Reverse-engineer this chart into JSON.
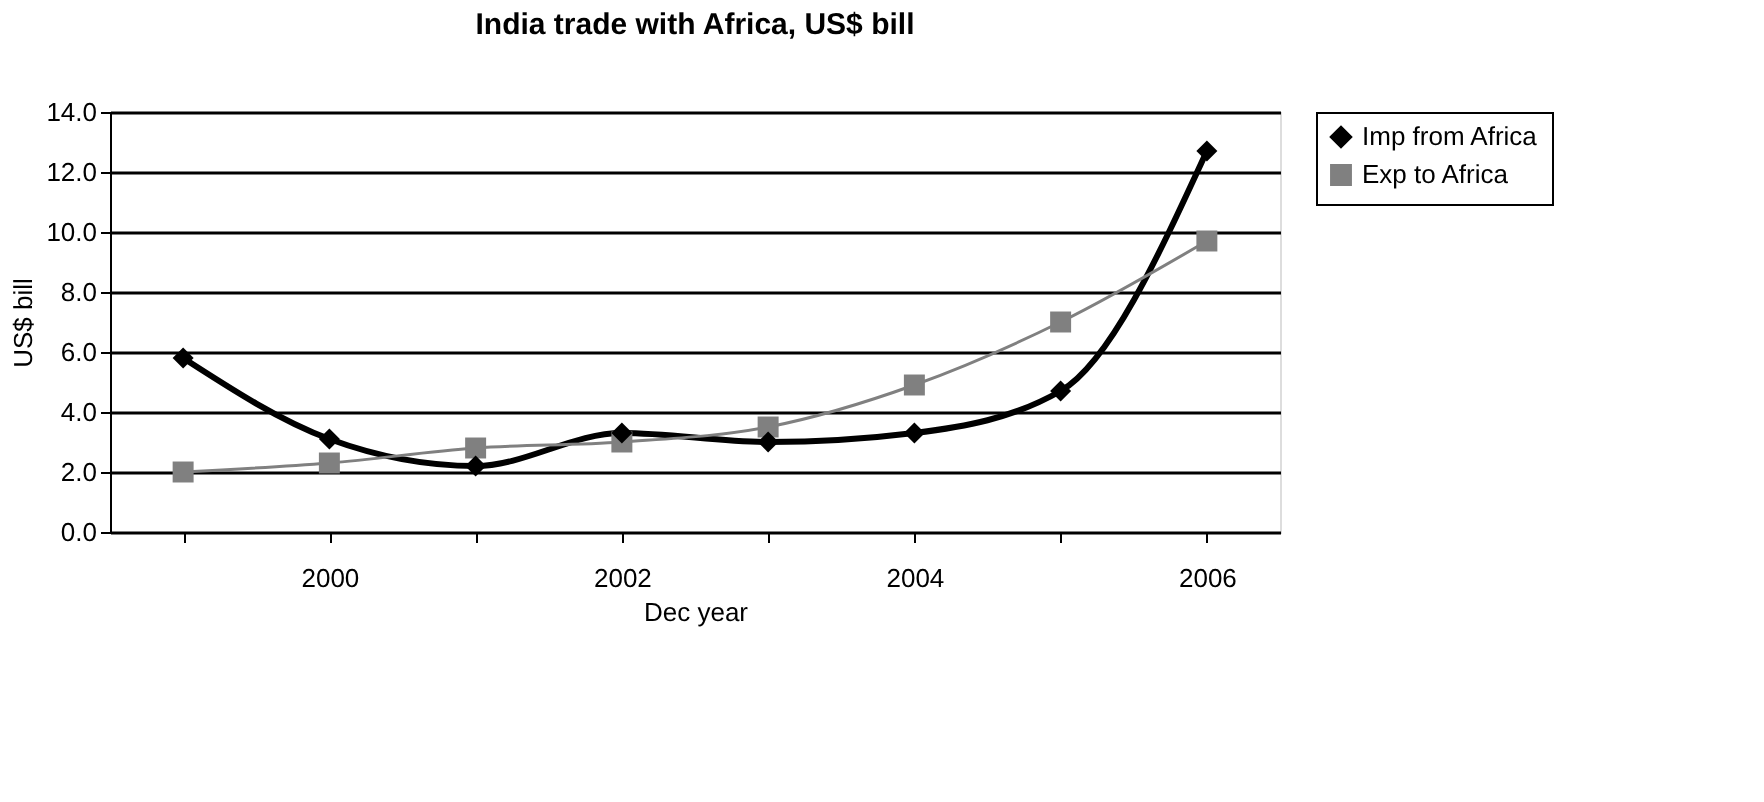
{
  "chart_data": {
    "type": "line",
    "title": "India trade with Africa, US$ bill",
    "xlabel": "Dec year",
    "ylabel": "US$ bill",
    "categories": [
      null,
      "2000",
      null,
      "2002",
      null,
      "2004",
      null,
      "2006"
    ],
    "series": [
      {
        "name": "Imp from Africa",
        "color": "#000000",
        "marker": "diamond",
        "values": [
          5.8,
          3.1,
          2.2,
          3.3,
          3.0,
          3.3,
          4.7,
          12.7
        ]
      },
      {
        "name": "Exp to Africa",
        "color": "#808080",
        "marker": "square",
        "values": [
          2.0,
          2.3,
          2.8,
          3.0,
          3.5,
          4.9,
          7.0,
          9.7
        ]
      }
    ],
    "ylim": [
      0,
      14
    ],
    "yticks": [
      {
        "value": 0,
        "label": "0.0"
      },
      {
        "value": 2,
        "label": "2.0"
      },
      {
        "value": 4,
        "label": "4.0"
      },
      {
        "value": 6,
        "label": "6.0"
      },
      {
        "value": 8,
        "label": "8.0"
      },
      {
        "value": 10,
        "label": "10.0"
      },
      {
        "value": 12,
        "label": "12.0"
      },
      {
        "value": 14,
        "label": "14.0"
      }
    ],
    "grid": "y",
    "legend": "right",
    "line_style": "solid"
  }
}
